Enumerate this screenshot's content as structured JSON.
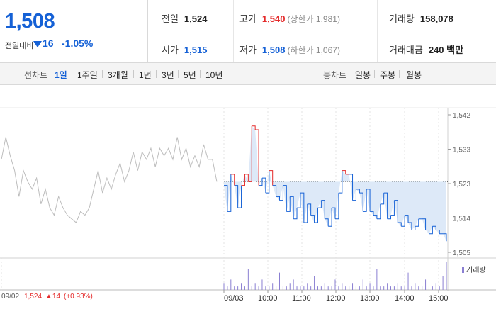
{
  "quote": {
    "price": "1,508",
    "change_label": "전일대비",
    "change_value": "16",
    "change_pct": "-1.05%"
  },
  "stats": {
    "prev_close": {
      "label": "전일",
      "value": "1,524"
    },
    "open": {
      "label": "시가",
      "value": "1,515"
    },
    "high": {
      "label": "고가",
      "value": "1,540",
      "sub": "(상한가 1,981)"
    },
    "low": {
      "label": "저가",
      "value": "1,508",
      "sub": "(하한가 1,067)"
    },
    "volume": {
      "label": "거래량",
      "value": "158,078"
    },
    "turnover": {
      "label": "거래대금",
      "value": "240 백만"
    }
  },
  "tabs": {
    "line_label": "선차트",
    "line": [
      "1일",
      "1주일",
      "3개월",
      "1년",
      "3년",
      "5년",
      "10년"
    ],
    "line_active": "1일",
    "candle_label": "봉차트",
    "candle": [
      "일봉",
      "주봉",
      "월봉"
    ]
  },
  "colors": {
    "up": "#e42a2a",
    "down": "#1561d6",
    "prev_day": "#bdbdbd",
    "fill": "#dde9f8",
    "volume": "#8a7fd2"
  },
  "volume_legend": "거래량",
  "footer": {
    "prev_date": "09/02",
    "prev_close": "1,524",
    "prev_change": "▲14",
    "prev_change_pct": "(+0.93%)"
  },
  "chart_data": {
    "type": "line",
    "y_ticks": [
      "1,542",
      "1,533",
      "1,523",
      "1,514",
      "1,505"
    ],
    "ylim": [
      1505,
      1542
    ],
    "reference_line": 1524,
    "x_ticks": [
      "09/03",
      "10:00",
      "11:00",
      "12:00",
      "13:00",
      "14:00",
      "15:00"
    ],
    "series": [
      {
        "values": [
          1530,
          1536,
          1531,
          1527,
          1520,
          1527,
          1524,
          1522,
          1525,
          1518,
          1522,
          1517,
          1515,
          1520,
          1517,
          1515,
          1514,
          1513,
          1516,
          1515,
          1517,
          1522,
          1527,
          1521,
          1525,
          1522,
          1526,
          1529,
          1524,
          1527,
          1532,
          1527,
          1532,
          1530,
          1533,
          1528,
          1533,
          1531,
          1533,
          1530,
          1536,
          1530,
          1533,
          1528,
          1531,
          1528,
          1534,
          1530,
          1530,
          1524
        ],
        "label_index": 0
      },
      {
        "values": [
          1523,
          1516,
          1526,
          1523,
          1517,
          1523,
          1526,
          1524,
          1539,
          1538,
          1523,
          1525,
          1521,
          1527,
          1523,
          1520,
          1519,
          1523,
          1516,
          1520,
          1514,
          1517,
          1521,
          1513,
          1518,
          1515,
          1513,
          1517,
          1519,
          1514,
          1512,
          1517,
          1514,
          1521,
          1527,
          1526,
          1526,
          1519,
          1522,
          1521,
          1516,
          1522,
          1516,
          1515,
          1514,
          1518,
          1521,
          1514,
          1515,
          1519,
          1513,
          1512,
          1515,
          1513,
          1511,
          1512,
          1514,
          1514,
          1511,
          1510,
          1512,
          1511,
          1510,
          1510,
          1508
        ],
        "label_index": 1
      }
    ],
    "volume": [
      2,
      1,
      3,
      1,
      1,
      2,
      1,
      6,
      1,
      2,
      1,
      3,
      1,
      1,
      2,
      1,
      5,
      1,
      1,
      2,
      3,
      1,
      1,
      1,
      2,
      1,
      4,
      1,
      1,
      2,
      1,
      1,
      3,
      1,
      2,
      1,
      1,
      2,
      1,
      1,
      3,
      1,
      2,
      1,
      6,
      1,
      1,
      2,
      1,
      1,
      2,
      1,
      1,
      5,
      1,
      2,
      1,
      1,
      3,
      1,
      1,
      2,
      1,
      4,
      8
    ]
  }
}
